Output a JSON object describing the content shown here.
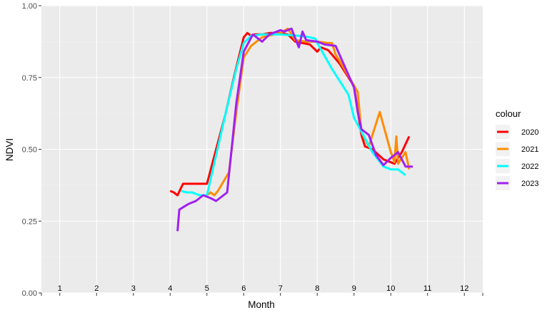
{
  "chart_data": {
    "type": "line",
    "title": "",
    "xlabel": "Month",
    "ylabel": "NDVI",
    "xlim": [
      0.5,
      12.5
    ],
    "ylim": [
      0,
      1
    ],
    "yticks": [
      0.0,
      0.25,
      0.5,
      0.75,
      1.0
    ],
    "ytick_labels": [
      "0.00",
      "0.25",
      "0.50",
      "0.75",
      "1.00"
    ],
    "month_labels": [
      "1",
      "2",
      "3",
      "4",
      "5",
      "6",
      "7",
      "8",
      "9",
      "10",
      "11",
      "12"
    ],
    "grid": true,
    "legend": {
      "title": "colour",
      "position": "right"
    },
    "series": [
      {
        "name": "2020",
        "color": "#ff0000",
        "points": [
          [
            4.0,
            0.355
          ],
          [
            4.1,
            0.35
          ],
          [
            4.2,
            0.34
          ],
          [
            4.35,
            0.38
          ],
          [
            5.0,
            0.38
          ],
          [
            5.5,
            0.62
          ],
          [
            5.75,
            0.76
          ],
          [
            6.0,
            0.89
          ],
          [
            6.1,
            0.905
          ],
          [
            6.2,
            0.895
          ],
          [
            6.3,
            0.9
          ],
          [
            6.5,
            0.9
          ],
          [
            6.7,
            0.905
          ],
          [
            7.0,
            0.905
          ],
          [
            7.2,
            0.9
          ],
          [
            7.4,
            0.875
          ],
          [
            7.8,
            0.865
          ],
          [
            8.0,
            0.84
          ],
          [
            8.1,
            0.855
          ],
          [
            8.3,
            0.845
          ],
          [
            8.6,
            0.8
          ],
          [
            9.0,
            0.72
          ],
          [
            9.2,
            0.55
          ],
          [
            9.3,
            0.51
          ],
          [
            9.5,
            0.5
          ],
          [
            9.8,
            0.465
          ],
          [
            10.1,
            0.45
          ],
          [
            10.3,
            0.49
          ],
          [
            10.5,
            0.545
          ]
        ]
      },
      {
        "name": "2021",
        "color": "#ff8c00",
        "points": [
          [
            5.0,
            0.34
          ],
          [
            5.1,
            0.35
          ],
          [
            5.2,
            0.34
          ],
          [
            5.3,
            0.355
          ],
          [
            5.6,
            0.42
          ],
          [
            5.8,
            0.63
          ],
          [
            6.0,
            0.82
          ],
          [
            6.2,
            0.86
          ],
          [
            6.5,
            0.89
          ],
          [
            7.0,
            0.905
          ],
          [
            7.2,
            0.92
          ],
          [
            7.3,
            0.9
          ],
          [
            7.4,
            0.88
          ],
          [
            7.7,
            0.875
          ],
          [
            8.0,
            0.875
          ],
          [
            8.3,
            0.87
          ],
          [
            8.4,
            0.87
          ],
          [
            8.5,
            0.83
          ],
          [
            8.6,
            0.81
          ],
          [
            9.1,
            0.7
          ],
          [
            9.2,
            0.56
          ],
          [
            9.4,
            0.51
          ],
          [
            9.7,
            0.63
          ],
          [
            10.0,
            0.49
          ],
          [
            10.1,
            0.455
          ],
          [
            10.15,
            0.545
          ],
          [
            10.2,
            0.45
          ],
          [
            10.4,
            0.49
          ],
          [
            10.5,
            0.43
          ]
        ]
      },
      {
        "name": "2022",
        "color": "#00ffff",
        "points": [
          [
            4.3,
            0.355
          ],
          [
            4.45,
            0.35
          ],
          [
            4.6,
            0.35
          ],
          [
            4.7,
            0.345
          ],
          [
            4.8,
            0.34
          ],
          [
            5.0,
            0.34
          ],
          [
            5.5,
            0.62
          ],
          [
            5.8,
            0.78
          ],
          [
            6.0,
            0.87
          ],
          [
            6.2,
            0.895
          ],
          [
            6.5,
            0.9
          ],
          [
            7.0,
            0.9
          ],
          [
            7.5,
            0.895
          ],
          [
            7.8,
            0.89
          ],
          [
            7.95,
            0.885
          ],
          [
            8.0,
            0.87
          ],
          [
            8.4,
            0.78
          ],
          [
            8.85,
            0.69
          ],
          [
            9.0,
            0.61
          ],
          [
            9.25,
            0.55
          ],
          [
            9.5,
            0.49
          ],
          [
            9.8,
            0.44
          ],
          [
            10.0,
            0.43
          ],
          [
            10.2,
            0.43
          ],
          [
            10.4,
            0.41
          ]
        ]
      },
      {
        "name": "2023",
        "color": "#a020f0",
        "points": [
          [
            4.2,
            0.215
          ],
          [
            4.25,
            0.29
          ],
          [
            4.5,
            0.31
          ],
          [
            4.7,
            0.32
          ],
          [
            4.9,
            0.34
          ],
          [
            5.1,
            0.33
          ],
          [
            5.25,
            0.32
          ],
          [
            5.55,
            0.35
          ],
          [
            5.8,
            0.66
          ],
          [
            6.0,
            0.84
          ],
          [
            6.25,
            0.9
          ],
          [
            6.45,
            0.88
          ],
          [
            6.5,
            0.875
          ],
          [
            6.7,
            0.9
          ],
          [
            7.0,
            0.915
          ],
          [
            7.1,
            0.91
          ],
          [
            7.3,
            0.92
          ],
          [
            7.5,
            0.855
          ],
          [
            7.6,
            0.91
          ],
          [
            7.7,
            0.88
          ],
          [
            8.0,
            0.875
          ],
          [
            8.2,
            0.865
          ],
          [
            8.5,
            0.86
          ],
          [
            9.0,
            0.715
          ],
          [
            9.1,
            0.63
          ],
          [
            9.2,
            0.57
          ],
          [
            9.4,
            0.55
          ],
          [
            9.6,
            0.48
          ],
          [
            9.8,
            0.445
          ],
          [
            10.0,
            0.47
          ],
          [
            10.2,
            0.49
          ],
          [
            10.4,
            0.44
          ],
          [
            10.6,
            0.44
          ]
        ]
      }
    ]
  }
}
